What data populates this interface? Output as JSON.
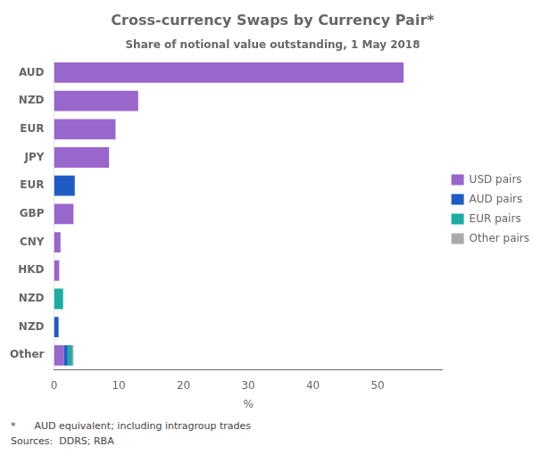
{
  "chart_data": {
    "type": "bar",
    "orientation": "horizontal",
    "stacked": true,
    "title": "Cross-currency Swaps by Currency Pair*",
    "subtitle": "Share of notional value outstanding, 1 May 2018",
    "annotations": [
      "*      AUD equivalent; including intragroup trades",
      "Sources:  DDRS; RBA"
    ],
    "xlabel": "%",
    "categories": [
      "AUD",
      "NZD",
      "EUR",
      "JPY",
      "EUR",
      "GBP",
      "CNY",
      "HKD",
      "NZD",
      "NZD",
      "Other"
    ],
    "series": [
      {
        "name": "USD pairs",
        "color": "#9966CC",
        "values": [
          54.0,
          13.0,
          9.5,
          8.5,
          0.0,
          3.0,
          1.0,
          0.8,
          0.0,
          0.0,
          1.5
        ]
      },
      {
        "name": "AUD pairs",
        "color": "#1F5BC4",
        "values": [
          0.0,
          0.0,
          0.0,
          0.0,
          3.2,
          0.0,
          0.0,
          0.0,
          0.0,
          0.7,
          0.6
        ]
      },
      {
        "name": "EUR pairs",
        "color": "#1AADA0",
        "values": [
          0.0,
          0.0,
          0.0,
          0.0,
          0.0,
          0.0,
          0.0,
          0.0,
          1.4,
          0.0,
          0.7
        ]
      },
      {
        "name": "Other pairs",
        "color": "#AAAAAA",
        "values": [
          0.0,
          0.0,
          0.0,
          0.0,
          0.0,
          0.0,
          0.0,
          0.0,
          0.0,
          0.0,
          0.2
        ]
      }
    ],
    "xlim": [
      0,
      60
    ],
    "xticks": [
      0,
      10,
      20,
      30,
      40,
      50
    ],
    "grid": false,
    "legend": "right"
  }
}
